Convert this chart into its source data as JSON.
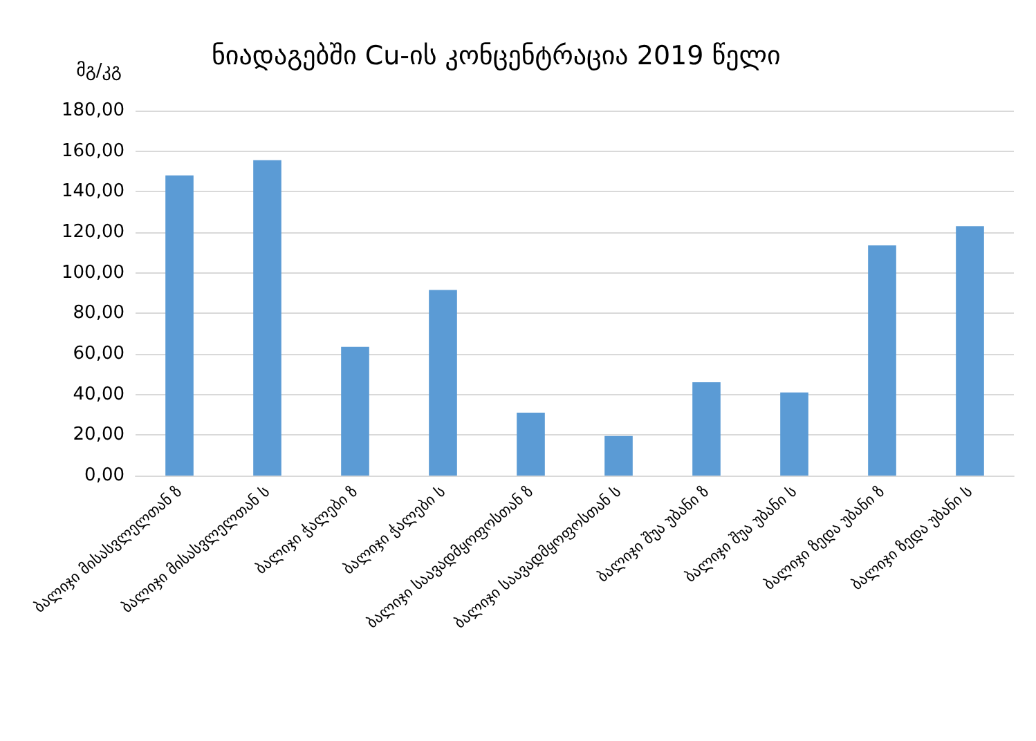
{
  "chart_data": {
    "type": "bar",
    "title": "ნიადაგებში Cu-ის კონცენტრაცია 2019 წელი",
    "ylabel": "მგ/კგ",
    "categories": [
      "ბალიჯი მისასვლელთან ზ",
      "ბალიჯი მისასვლელთან ს",
      "ბალიჯი ჭალები ზ",
      "ბალიჯი ჭალები ს",
      "ბალიჯი საავადმყოფოსთან ზ",
      "ბალიჯი საავადმყოფოსთან ს",
      "ბალიჯი შუა უბანი ზ",
      "ბალიჯი შუა უბანი ს",
      "ბალიჯი ზედა უბანი ზ",
      "ბალიჯი ზედა უბანი ს"
    ],
    "values": [
      148,
      155.5,
      63.5,
      91.5,
      31,
      19.5,
      46,
      41,
      113.5,
      123
    ],
    "color": "#5b9bd5",
    "ylim": [
      0,
      180
    ],
    "yticks": [
      {
        "value": 0,
        "label": "0,00"
      },
      {
        "value": 20,
        "label": "20,00"
      },
      {
        "value": 40,
        "label": "40,00"
      },
      {
        "value": 60,
        "label": "60,00"
      },
      {
        "value": 80,
        "label": "80,00"
      },
      {
        "value": 100,
        "label": "100,00"
      },
      {
        "value": 120,
        "label": "120,00"
      },
      {
        "value": 140,
        "label": "140,00"
      },
      {
        "value": 160,
        "label": "160,00"
      },
      {
        "value": 180,
        "label": "180,00"
      }
    ],
    "grid": "y"
  }
}
